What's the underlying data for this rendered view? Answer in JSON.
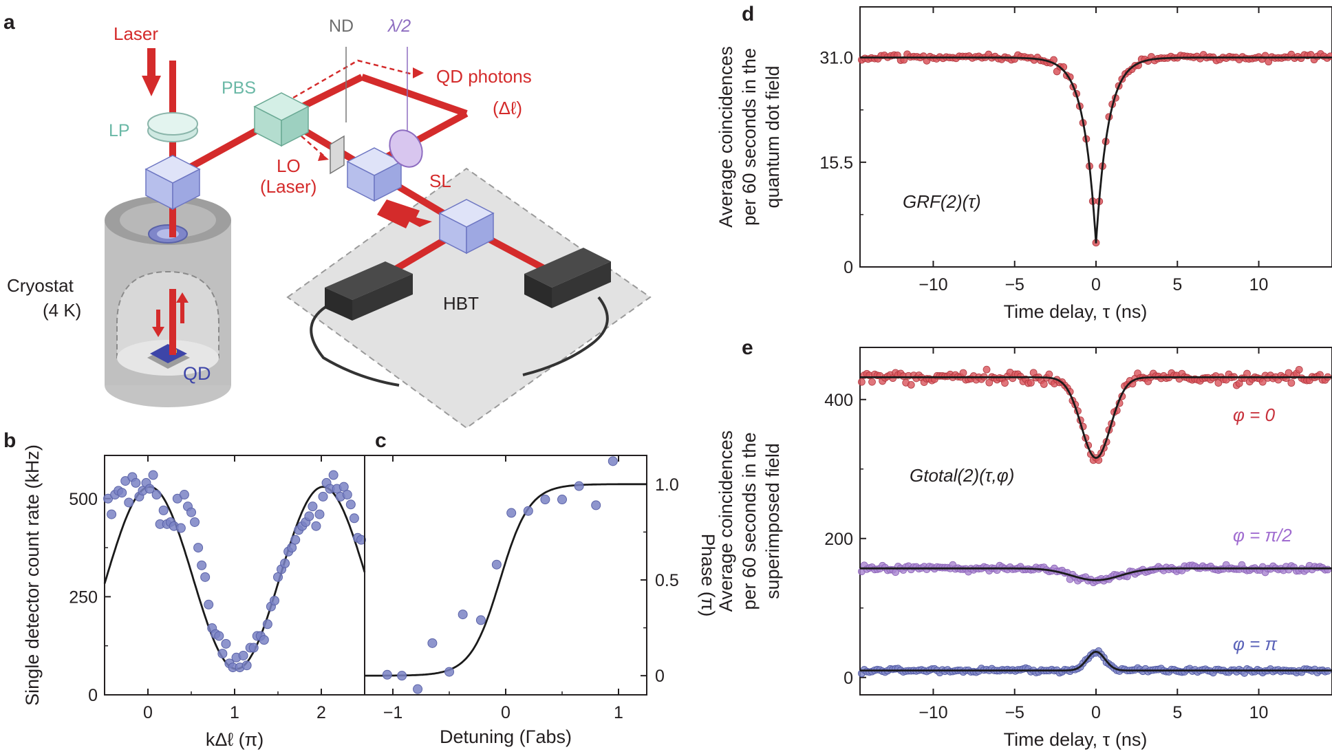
{
  "panel_labels": {
    "a": "a",
    "b": "b",
    "c": "c",
    "d": "d",
    "e": "e"
  },
  "colors": {
    "laser": "#d42b2b",
    "red_points": "#d9545b",
    "purple_points": "#a883cf",
    "blue_points": "#7a82c4",
    "fit": "#1a1a1a",
    "cube": "#c8cff0",
    "lp": "#cfe9e2",
    "detector": "#3a3a3a",
    "stage": "#dedede",
    "cryostat": "#c6c6c6"
  },
  "diagram": {
    "laser": "Laser",
    "lp": "LP",
    "pbs": "PBS",
    "nd": "ND",
    "half_wave": "λ/2",
    "qd_photons": "QD photons",
    "delta_l": "(Δℓ)",
    "lo": "LO",
    "lo_laser": "(Laser)",
    "sl": "SL",
    "hbt": "HBT",
    "cryostat": "Cryostat",
    "temperature": "(4 K)",
    "qd": "QD"
  },
  "chart_data": [
    {
      "id": "b",
      "type": "scatter",
      "xlabel": "kΔℓ (π)",
      "ylabel": "Single detector count rate (kHz)",
      "xlim": [
        -0.5,
        2.5
      ],
      "ylim": [
        0,
        610
      ],
      "xticks": [
        "0",
        "1",
        "2"
      ],
      "yticks": [
        "0",
        "250",
        "500"
      ],
      "x": [
        -0.46,
        -0.42,
        -0.38,
        -0.34,
        -0.3,
        -0.26,
        -0.22,
        -0.18,
        -0.14,
        -0.1,
        -0.06,
        -0.02,
        0.02,
        0.06,
        0.1,
        0.14,
        0.18,
        0.22,
        0.26,
        0.3,
        0.34,
        0.38,
        0.42,
        0.46,
        0.5,
        0.54,
        0.58,
        0.62,
        0.66,
        0.7,
        0.74,
        0.78,
        0.82,
        0.86,
        0.9,
        0.94,
        0.98,
        1.02,
        1.06,
        1.1,
        1.14,
        1.18,
        1.22,
        1.26,
        1.3,
        1.34,
        1.38,
        1.42,
        1.46,
        1.5,
        1.54,
        1.58,
        1.62,
        1.66,
        1.7,
        1.74,
        1.78,
        1.82,
        1.86,
        1.9,
        1.94,
        1.98,
        2.02,
        2.06,
        2.1,
        2.14,
        2.18,
        2.22,
        2.26,
        2.3,
        2.34,
        2.38,
        2.42,
        2.46
      ],
      "y": [
        500,
        460,
        510,
        520,
        515,
        545,
        490,
        555,
        540,
        505,
        520,
        540,
        525,
        560,
        510,
        435,
        470,
        435,
        440,
        430,
        500,
        425,
        510,
        480,
        465,
        440,
        375,
        330,
        300,
        230,
        170,
        155,
        150,
        105,
        130,
        80,
        70,
        95,
        70,
        100,
        75,
        120,
        120,
        150,
        150,
        140,
        180,
        225,
        240,
        300,
        320,
        335,
        365,
        375,
        395,
        420,
        430,
        440,
        455,
        480,
        430,
        460,
        505,
        540,
        525,
        560,
        525,
        505,
        530,
        510,
        485,
        450,
        400,
        395
      ],
      "fit_name": ""
    },
    {
      "id": "c",
      "type": "scatter",
      "xlabel": "Detuning (Γabs)",
      "ylabel": "Phase (π)",
      "xlim": [
        -1.25,
        1.25
      ],
      "ylim": [
        -0.1,
        1.15
      ],
      "xticks": [
        "−1",
        "0",
        "1"
      ],
      "yticks": [
        "0",
        "0.5",
        "1.0"
      ],
      "x": [
        -1.05,
        -0.92,
        -0.78,
        -0.65,
        -0.5,
        -0.38,
        -0.22,
        -0.08,
        0.05,
        0.2,
        0.35,
        0.5,
        0.65,
        0.8,
        0.95
      ],
      "y": [
        0.005,
        0.0,
        -0.07,
        0.17,
        0.02,
        0.32,
        0.29,
        0.58,
        0.85,
        0.86,
        0.92,
        0.92,
        0.99,
        0.89,
        1.12
      ]
    },
    {
      "id": "d",
      "type": "scatter",
      "xlabel": "Time delay, τ (ns)",
      "ylabel": "Average coincidences per 60 seconds in the quantum dot field",
      "xlim": [
        -14.5,
        14.5
      ],
      "ylim": [
        0,
        38.5
      ],
      "xticks": [
        "−10",
        "−5",
        "0",
        "5",
        "10"
      ],
      "yticks": [
        "0",
        "15.5",
        "31.0"
      ],
      "annotation": "GRF(2)(τ)",
      "baseline": 31.0,
      "dip_min": 3.5
    },
    {
      "id": "e",
      "type": "scatter",
      "xlabel": "Time delay, τ (ns)",
      "ylabel": "Average coincidences per 60 seconds in the superimposed field",
      "xlim": [
        -14.5,
        14.5
      ],
      "ylim": [
        -25,
        475
      ],
      "xticks": [
        "−10",
        "−5",
        "0",
        "5",
        "10"
      ],
      "yticks": [
        "0",
        "200",
        "400"
      ],
      "annotation": "Gtotal(2)(τ,φ)",
      "series": [
        {
          "name": "φ = 0",
          "baseline": 432,
          "extremum": 316
        },
        {
          "name": "φ = π/2",
          "baseline": 157,
          "extremum": 140
        },
        {
          "name": "φ = π",
          "baseline": 10,
          "extremum": 37
        }
      ]
    }
  ]
}
